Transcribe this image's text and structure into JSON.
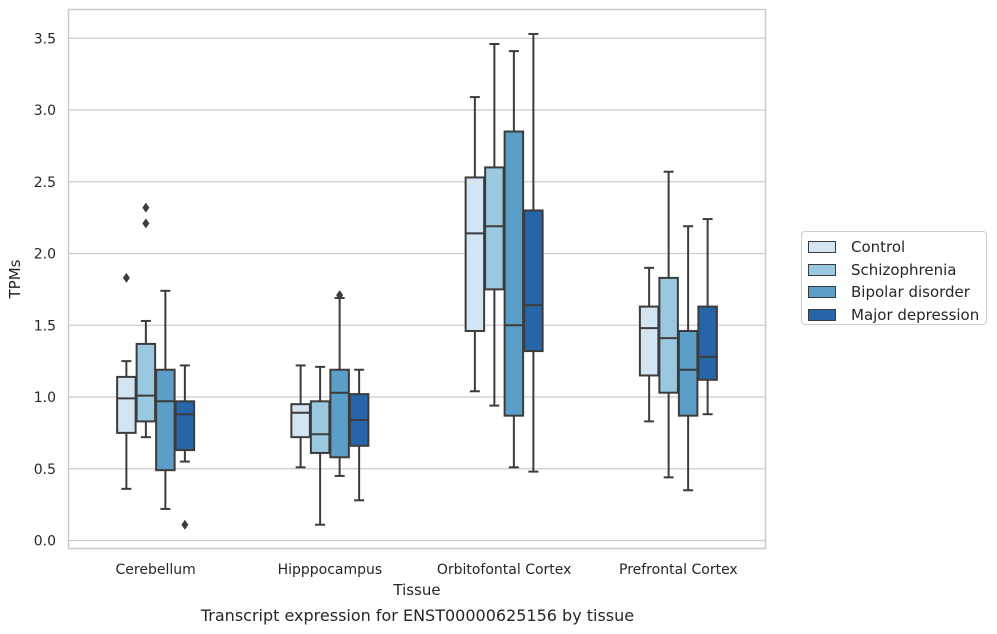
{
  "caption": "Transcript expression for ENST00000625156 by tissue",
  "chart_data": {
    "type": "boxplot",
    "xlabel": "Tissue",
    "ylabel": "TPMs",
    "ylim": [
      -0.04,
      3.7
    ],
    "yticks": [
      0.0,
      0.5,
      1.0,
      1.5,
      2.0,
      2.5,
      3.0,
      3.5
    ],
    "ytick_labels": [
      "0.0",
      "0.5",
      "1.0",
      "1.5",
      "2.0",
      "2.5",
      "3.0",
      "3.5"
    ],
    "grid": "horizontal",
    "legend_position": "right",
    "categories": [
      "Cerebellum",
      "Hipppocampus",
      "Orbitofontal Cortex",
      "Prefrontal Cortex"
    ],
    "series": [
      {
        "name": "Control",
        "color": "#d3e4f3",
        "boxes": [
          {
            "whislo": 0.36,
            "q1": 0.75,
            "med": 0.99,
            "q3": 1.14,
            "whishi": 1.25,
            "fliers": [
              1.83
            ]
          },
          {
            "whislo": 0.51,
            "q1": 0.72,
            "med": 0.89,
            "q3": 0.95,
            "whishi": 1.22,
            "fliers": []
          },
          {
            "whislo": 1.04,
            "q1": 1.46,
            "med": 2.14,
            "q3": 2.53,
            "whishi": 3.09,
            "fliers": []
          },
          {
            "whislo": 0.83,
            "q1": 1.15,
            "med": 1.48,
            "q3": 1.63,
            "whishi": 1.9,
            "fliers": []
          }
        ]
      },
      {
        "name": "Schizophrenia",
        "color": "#9ac8e0",
        "boxes": [
          {
            "whislo": 0.72,
            "q1": 0.83,
            "med": 1.01,
            "q3": 1.37,
            "whishi": 1.53,
            "fliers": [
              2.21,
              2.32
            ]
          },
          {
            "whislo": 0.11,
            "q1": 0.61,
            "med": 0.74,
            "q3": 0.97,
            "whishi": 1.21,
            "fliers": []
          },
          {
            "whislo": 0.94,
            "q1": 1.75,
            "med": 2.19,
            "q3": 2.6,
            "whishi": 3.46,
            "fliers": []
          },
          {
            "whislo": 0.44,
            "q1": 1.03,
            "med": 1.41,
            "q3": 1.83,
            "whishi": 2.57,
            "fliers": []
          }
        ]
      },
      {
        "name": "Bipolar disorder",
        "color": "#5b9ec8",
        "boxes": [
          {
            "whislo": 0.22,
            "q1": 0.49,
            "med": 0.97,
            "q3": 1.19,
            "whishi": 1.74,
            "fliers": []
          },
          {
            "whislo": 0.45,
            "q1": 0.58,
            "med": 1.03,
            "q3": 1.19,
            "whishi": 1.69,
            "fliers": [
              1.71
            ]
          },
          {
            "whislo": 0.51,
            "q1": 0.87,
            "med": 1.5,
            "q3": 2.85,
            "whishi": 3.41,
            "fliers": []
          },
          {
            "whislo": 0.35,
            "q1": 0.87,
            "med": 1.19,
            "q3": 1.46,
            "whishi": 2.19,
            "fliers": []
          }
        ]
      },
      {
        "name": "Major depression",
        "color": "#2565a8",
        "boxes": [
          {
            "whislo": 0.55,
            "q1": 0.63,
            "med": 0.88,
            "q3": 0.97,
            "whishi": 1.22,
            "fliers": [
              0.11
            ]
          },
          {
            "whislo": 0.28,
            "q1": 0.66,
            "med": 0.84,
            "q3": 1.02,
            "whishi": 1.19,
            "fliers": []
          },
          {
            "whislo": 0.48,
            "q1": 1.32,
            "med": 1.64,
            "q3": 2.3,
            "whishi": 3.53,
            "fliers": []
          },
          {
            "whislo": 0.88,
            "q1": 1.12,
            "med": 1.28,
            "q3": 1.63,
            "whishi": 2.24,
            "fliers": []
          }
        ]
      }
    ]
  }
}
